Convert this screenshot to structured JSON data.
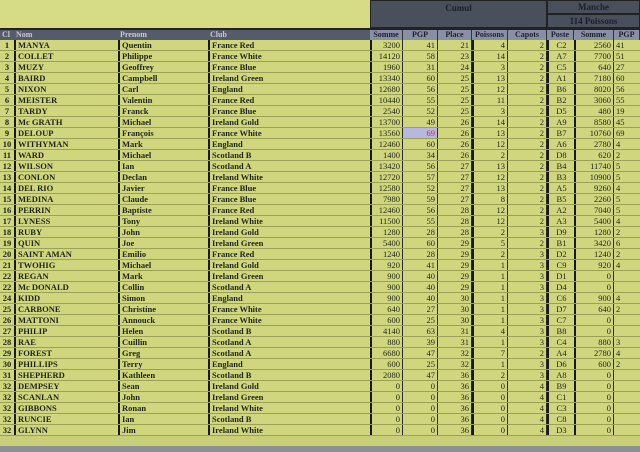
{
  "groups": {
    "cumul": "Cumul",
    "manche": "Manche",
    "manche_sub": "114 Poissons"
  },
  "columns": [
    "Cl",
    "Nom",
    "Prenom",
    "Club",
    "Somme",
    "PGP",
    "Place",
    "Poissons",
    "Capots",
    "Poste",
    "Somme",
    "PGP"
  ],
  "highlight_color": "#b9b6e0",
  "rows": [
    [
      "1",
      "MANYA",
      "Quentin",
      "France Red",
      "3200",
      "41",
      "21",
      "4",
      "2",
      "C2",
      "2560",
      "41"
    ],
    [
      "2",
      "COLLET",
      "Philippe",
      "France White",
      "14120",
      "58",
      "23",
      "14",
      "2",
      "A7",
      "7700",
      "51"
    ],
    [
      "3",
      "MUZY",
      "Geoffrey",
      "France Blue",
      "1960",
      "31",
      "24",
      "3",
      "2",
      "C5",
      "640",
      "27"
    ],
    [
      "4",
      "BAIRD",
      "Campbell",
      "Ireland Green",
      "13340",
      "60",
      "25",
      "13",
      "2",
      "A1",
      "7180",
      "60"
    ],
    [
      "5",
      "NIXON",
      "Carl",
      "England",
      "12680",
      "56",
      "25",
      "12",
      "2",
      "B6",
      "8020",
      "56"
    ],
    [
      "6",
      "MEISTER",
      "Valentin",
      "France Red",
      "10440",
      "55",
      "25",
      "11",
      "2",
      "B2",
      "3060",
      "55"
    ],
    [
      "7",
      "TARDY",
      "Franck",
      "France Blue",
      "2540",
      "52",
      "25",
      "3",
      "2",
      "D5",
      "480",
      "19"
    ],
    [
      "8",
      "Mc GRATH",
      "Michael",
      "Ireland Gold",
      "13700",
      "49",
      "26",
      "14",
      "2",
      "A9",
      "8580",
      "45"
    ],
    [
      "9",
      "DELOUP",
      "François",
      "France White",
      "13560",
      "69",
      "26",
      "13",
      "2",
      "B7",
      "10760",
      "69"
    ],
    [
      "10",
      "WITHYMAN",
      "Mark",
      "England",
      "12460",
      "60",
      "26",
      "12",
      "2",
      "A6",
      "2780",
      "4"
    ],
    [
      "11",
      "WARD",
      "Michael",
      "Scotland B",
      "1400",
      "34",
      "26",
      "2",
      "2",
      "D8",
      "620",
      "2"
    ],
    [
      "12",
      "WILSON",
      "Ian",
      "Scotland A",
      "13420",
      "56",
      "27",
      "13",
      "2",
      "B4",
      "11740",
      "5"
    ],
    [
      "13",
      "CONLON",
      "Declan",
      "Ireland White",
      "12720",
      "57",
      "27",
      "12",
      "2",
      "B3",
      "10900",
      "5"
    ],
    [
      "14",
      "DEL RIO",
      "Javier",
      "France Blue",
      "12580",
      "52",
      "27",
      "13",
      "2",
      "A5",
      "9260",
      "4"
    ],
    [
      "15",
      "MEDINA",
      "Claude",
      "France Blue",
      "7980",
      "59",
      "27",
      "8",
      "2",
      "B5",
      "2260",
      "5"
    ],
    [
      "16",
      "PERRIN",
      "Baptiste",
      "France Red",
      "12460",
      "56",
      "28",
      "12",
      "2",
      "A2",
      "7040",
      "5"
    ],
    [
      "17",
      "LYNESS",
      "Tony",
      "Ireland White",
      "11500",
      "55",
      "28",
      "12",
      "2",
      "A3",
      "5400",
      "4"
    ],
    [
      "18",
      "RUBY",
      "John",
      "Ireland Gold",
      "1280",
      "28",
      "28",
      "2",
      "3",
      "D9",
      "1280",
      "2"
    ],
    [
      "19",
      "QUIN",
      "Joe",
      "Ireland Green",
      "5400",
      "60",
      "29",
      "5",
      "2",
      "B1",
      "3420",
      "6"
    ],
    [
      "20",
      "SAINT AMAN",
      "Emilio",
      "France Red",
      "1240",
      "28",
      "29",
      "2",
      "3",
      "D2",
      "1240",
      "2"
    ],
    [
      "21",
      "TWOHIG",
      "Michael",
      "Ireland Gold",
      "920",
      "41",
      "29",
      "1",
      "3",
      "C9",
      "920",
      "4"
    ],
    [
      "22",
      "REGAN",
      "Mark",
      "Ireland Green",
      "900",
      "40",
      "29",
      "1",
      "3",
      "D1",
      "0",
      ""
    ],
    [
      "22",
      "Mc DONALD",
      "Collin",
      "Scotland A",
      "900",
      "40",
      "29",
      "1",
      "3",
      "D4",
      "0",
      ""
    ],
    [
      "24",
      "KIDD",
      "Simon",
      "England",
      "900",
      "40",
      "30",
      "1",
      "3",
      "C6",
      "900",
      "4"
    ],
    [
      "25",
      "CARBONE",
      "Christine",
      "France White",
      "640",
      "27",
      "30",
      "1",
      "3",
      "D7",
      "640",
      "2"
    ],
    [
      "26",
      "MATTONI",
      "Annouck",
      "France White",
      "600",
      "25",
      "30",
      "1",
      "3",
      "C7",
      "0",
      ""
    ],
    [
      "27",
      "PHILIP",
      "Helen",
      "Scotland B",
      "4140",
      "63",
      "31",
      "4",
      "3",
      "B8",
      "0",
      ""
    ],
    [
      "28",
      "RAE",
      "Cuillin",
      "Scotland A",
      "880",
      "39",
      "31",
      "1",
      "3",
      "C4",
      "880",
      "3"
    ],
    [
      "29",
      "FOREST",
      "Greg",
      "Scotland A",
      "6680",
      "47",
      "32",
      "7",
      "2",
      "A4",
      "2780",
      "4"
    ],
    [
      "30",
      "PHILLIPS",
      "Terry",
      "England",
      "600",
      "25",
      "32",
      "1",
      "3",
      "D6",
      "600",
      "2"
    ],
    [
      "31",
      "SHEPHERD",
      "Kathleen",
      "Scotland B",
      "2080",
      "47",
      "36",
      "2",
      "3",
      "A8",
      "0",
      ""
    ],
    [
      "32",
      "DEMPSEY",
      "Sean",
      "Ireland Gold",
      "0",
      "0",
      "36",
      "0",
      "4",
      "B9",
      "0",
      ""
    ],
    [
      "32",
      "SCANLAN",
      "John",
      "Ireland Green",
      "0",
      "0",
      "36",
      "0",
      "4",
      "C1",
      "0",
      ""
    ],
    [
      "32",
      "GIBBONS",
      "Ronan",
      "Ireland White",
      "0",
      "0",
      "36",
      "0",
      "4",
      "C3",
      "0",
      ""
    ],
    [
      "32",
      "RUNCIE",
      "Ian",
      "Scotland B",
      "0",
      "0",
      "36",
      "0",
      "4",
      "C8",
      "0",
      ""
    ],
    [
      "32",
      "GLYNN",
      "Jim",
      "Ireland White",
      "0",
      "0",
      "36",
      "0",
      "4",
      "D3",
      "0",
      ""
    ]
  ]
}
